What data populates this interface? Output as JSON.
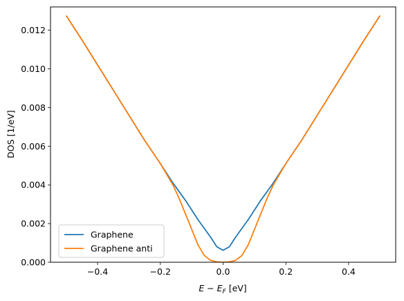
{
  "chart_data": {
    "type": "line",
    "title": "",
    "xlabel_main": "E − E",
    "xlabel_sub": "F",
    "xlabel_unit": " [eV]",
    "ylabel": "DOS [1/eV]",
    "xlim": [
      -0.55,
      0.55
    ],
    "ylim": [
      0,
      0.0132
    ],
    "xticks": [
      -0.4,
      -0.2,
      0.0,
      0.2,
      0.4
    ],
    "xtick_labels": [
      "−0.4",
      "−0.2",
      "0.0",
      "0.2",
      "0.4"
    ],
    "yticks": [
      0,
      0.002,
      0.004,
      0.006,
      0.008,
      0.01,
      0.012
    ],
    "ytick_labels": [
      "0.000",
      "0.002",
      "0.004",
      "0.006",
      "0.008",
      "0.010",
      "0.012"
    ],
    "grid": false,
    "legend_position": "lower-left",
    "series": [
      {
        "name": "Graphene",
        "color": "#1f77b4",
        "x": [
          -0.5,
          -0.45,
          -0.4,
          -0.35,
          -0.3,
          -0.25,
          -0.2,
          -0.16,
          -0.12,
          -0.08,
          -0.04,
          -0.02,
          0.0,
          0.02,
          0.04,
          0.08,
          0.12,
          0.16,
          0.2,
          0.25,
          0.3,
          0.35,
          0.4,
          0.45,
          0.5
        ],
        "y": [
          0.01275,
          0.0115,
          0.0102,
          0.0089,
          0.0076,
          0.0063,
          0.0051,
          0.0041,
          0.0032,
          0.0022,
          0.0013,
          0.0008,
          0.00062,
          0.0008,
          0.0013,
          0.0022,
          0.0032,
          0.0041,
          0.0051,
          0.0063,
          0.0076,
          0.0089,
          0.0102,
          0.0115,
          0.01275
        ]
      },
      {
        "name": "Graphene anti",
        "color": "#ff7f0e",
        "x": [
          -0.5,
          -0.45,
          -0.4,
          -0.35,
          -0.3,
          -0.25,
          -0.2,
          -0.16,
          -0.14,
          -0.12,
          -0.1,
          -0.08,
          -0.06,
          -0.04,
          -0.02,
          0.0,
          0.02,
          0.04,
          0.06,
          0.08,
          0.1,
          0.12,
          0.14,
          0.16,
          0.2,
          0.25,
          0.3,
          0.35,
          0.4,
          0.45,
          0.5
        ],
        "y": [
          0.01275,
          0.0115,
          0.0102,
          0.0089,
          0.0076,
          0.0063,
          0.0051,
          0.004,
          0.0033,
          0.0025,
          0.0017,
          0.0009,
          0.00035,
          0.0001,
          2e-05,
          0.0,
          2e-05,
          0.0001,
          0.00035,
          0.0009,
          0.0017,
          0.0025,
          0.0033,
          0.004,
          0.0051,
          0.0063,
          0.0076,
          0.0089,
          0.0102,
          0.0115,
          0.01275
        ]
      }
    ]
  }
}
